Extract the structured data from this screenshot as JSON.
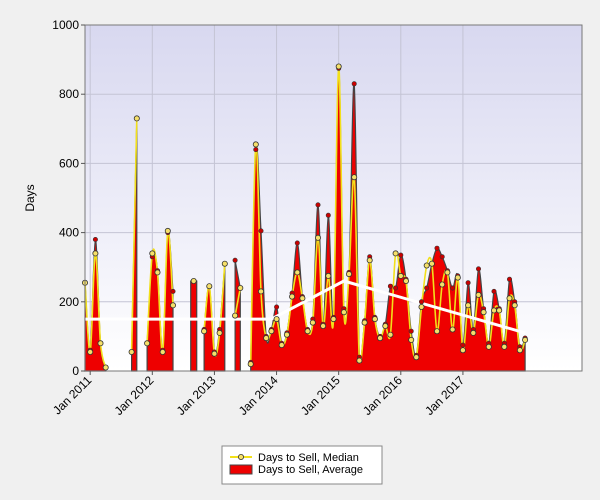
{
  "chart_data": {
    "type": "area",
    "title": "",
    "xlabel": "",
    "ylabel": "Days",
    "ylim": [
      0,
      1000
    ],
    "yticks": [
      "0",
      "200",
      "400",
      "600",
      "800",
      "1000"
    ],
    "xlim": [
      "2010-12",
      "2018-12"
    ],
    "xticks": [
      {
        "date": "2011-01",
        "label": "Jan 2011"
      },
      {
        "date": "2012-01",
        "label": "Jan 2012"
      },
      {
        "date": "2013-01",
        "label": "Jan 2013"
      },
      {
        "date": "2014-01",
        "label": "Jan 2014"
      },
      {
        "date": "2015-01",
        "label": "Jan 2015"
      },
      {
        "date": "2016-01",
        "label": "Jan 2016"
      },
      {
        "date": "2017-01",
        "label": "Jan 2017"
      }
    ],
    "grid": true,
    "legend_position": "bottom-center",
    "series": [
      {
        "name": "Days to Sell, Median",
        "kind": "line-markers",
        "color": "#f2e01a",
        "marker_color": "#f6e06a",
        "points": [
          [
            "2010-12",
            255
          ],
          [
            "2011-01",
            55
          ],
          [
            "2011-02",
            340
          ],
          [
            "2011-03",
            80
          ],
          [
            "2011-04",
            10
          ],
          [
            "2011-09",
            55
          ],
          [
            "2011-10",
            730
          ],
          [
            "2011-12",
            80
          ],
          [
            "2012-01",
            340
          ],
          [
            "2012-02",
            285
          ],
          [
            "2012-03",
            55
          ],
          [
            "2012-04",
            405
          ],
          [
            "2012-05",
            190
          ],
          [
            "2012-09",
            260
          ],
          [
            "2012-11",
            115
          ],
          [
            "2012-12",
            245
          ],
          [
            "2013-01",
            50
          ],
          [
            "2013-02",
            110
          ],
          [
            "2013-03",
            310
          ],
          [
            "2013-05",
            160
          ],
          [
            "2013-06",
            240
          ],
          [
            "2013-08",
            20
          ],
          [
            "2013-09",
            655
          ],
          [
            "2013-10",
            230
          ],
          [
            "2013-11",
            95
          ],
          [
            "2013-12",
            115
          ],
          [
            "2014-01",
            150
          ],
          [
            "2014-02",
            75
          ],
          [
            "2014-03",
            105
          ],
          [
            "2014-04",
            215
          ],
          [
            "2014-05",
            285
          ],
          [
            "2014-06",
            210
          ],
          [
            "2014-07",
            115
          ],
          [
            "2014-08",
            140
          ],
          [
            "2014-09",
            385
          ],
          [
            "2014-10",
            130
          ],
          [
            "2014-11",
            275
          ],
          [
            "2014-12",
            150
          ],
          [
            "2015-01",
            880
          ],
          [
            "2015-02",
            170
          ],
          [
            "2015-03",
            280
          ],
          [
            "2015-04",
            560
          ],
          [
            "2015-05",
            30
          ],
          [
            "2015-06",
            140
          ],
          [
            "2015-07",
            320
          ],
          [
            "2015-08",
            150
          ],
          [
            "2015-09",
            95
          ],
          [
            "2015-10",
            130
          ],
          [
            "2015-11",
            105
          ],
          [
            "2015-12",
            340
          ],
          [
            "2016-01",
            275
          ],
          [
            "2016-02",
            260
          ],
          [
            "2016-03",
            90
          ],
          [
            "2016-04",
            40
          ],
          [
            "2016-05",
            185
          ],
          [
            "2016-06",
            305
          ],
          [
            "2016-07",
            310
          ],
          [
            "2016-08",
            115
          ],
          [
            "2016-09",
            250
          ],
          [
            "2016-10",
            285
          ],
          [
            "2016-11",
            120
          ],
          [
            "2016-12",
            270
          ],
          [
            "2017-01",
            60
          ],
          [
            "2017-02",
            190
          ],
          [
            "2017-03",
            110
          ],
          [
            "2017-04",
            220
          ],
          [
            "2017-05",
            170
          ],
          [
            "2017-06",
            70
          ],
          [
            "2017-07",
            175
          ],
          [
            "2017-08",
            175
          ],
          [
            "2017-09",
            70
          ],
          [
            "2017-10",
            210
          ],
          [
            "2017-11",
            190
          ],
          [
            "2017-12",
            60
          ],
          [
            "2018-01",
            90
          ]
        ]
      },
      {
        "name": "Days to Sell, Average",
        "kind": "area",
        "fill": "#ee0000",
        "stroke": "#444444",
        "marker_color": "#cc0000",
        "points": [
          [
            "2010-12",
            255
          ],
          [
            "2011-01",
            60
          ],
          [
            "2011-02",
            380
          ],
          [
            "2011-03",
            80
          ],
          [
            "2011-04",
            10
          ],
          [
            "2011-09",
            55
          ],
          [
            "2011-10",
            730
          ],
          [
            "2011-12",
            80
          ],
          [
            "2012-01",
            330
          ],
          [
            "2012-02",
            290
          ],
          [
            "2012-03",
            60
          ],
          [
            "2012-04",
            400
          ],
          [
            "2012-05",
            230
          ],
          [
            "2012-09",
            260
          ],
          [
            "2012-11",
            120
          ],
          [
            "2012-12",
            245
          ],
          [
            "2013-01",
            55
          ],
          [
            "2013-02",
            120
          ],
          [
            "2013-03",
            310
          ],
          [
            "2013-05",
            320
          ],
          [
            "2013-06",
            240
          ],
          [
            "2013-08",
            25
          ],
          [
            "2013-09",
            640
          ],
          [
            "2013-10",
            405
          ],
          [
            "2013-11",
            100
          ],
          [
            "2013-12",
            120
          ],
          [
            "2014-01",
            185
          ],
          [
            "2014-02",
            80
          ],
          [
            "2014-03",
            110
          ],
          [
            "2014-04",
            225
          ],
          [
            "2014-05",
            370
          ],
          [
            "2014-06",
            215
          ],
          [
            "2014-07",
            120
          ],
          [
            "2014-08",
            150
          ],
          [
            "2014-09",
            480
          ],
          [
            "2014-10",
            135
          ],
          [
            "2014-11",
            450
          ],
          [
            "2014-12",
            155
          ],
          [
            "2015-01",
            875
          ],
          [
            "2015-02",
            180
          ],
          [
            "2015-03",
            285
          ],
          [
            "2015-04",
            830
          ],
          [
            "2015-05",
            40
          ],
          [
            "2015-06",
            145
          ],
          [
            "2015-07",
            330
          ],
          [
            "2015-08",
            155
          ],
          [
            "2015-09",
            100
          ],
          [
            "2015-10",
            135
          ],
          [
            "2015-11",
            245
          ],
          [
            "2015-12",
            240
          ],
          [
            "2016-01",
            335
          ],
          [
            "2016-02",
            265
          ],
          [
            "2016-03",
            115
          ],
          [
            "2016-04",
            45
          ],
          [
            "2016-05",
            200
          ],
          [
            "2016-06",
            240
          ],
          [
            "2016-07",
            310
          ],
          [
            "2016-08",
            355
          ],
          [
            "2016-09",
            330
          ],
          [
            "2016-10",
            290
          ],
          [
            "2016-11",
            240
          ],
          [
            "2016-12",
            275
          ],
          [
            "2017-01",
            75
          ],
          [
            "2017-02",
            255
          ],
          [
            "2017-03",
            120
          ],
          [
            "2017-04",
            295
          ],
          [
            "2017-05",
            180
          ],
          [
            "2017-06",
            80
          ],
          [
            "2017-07",
            230
          ],
          [
            "2017-08",
            180
          ],
          [
            "2017-09",
            80
          ],
          [
            "2017-10",
            265
          ],
          [
            "2017-11",
            200
          ],
          [
            "2017-12",
            70
          ],
          [
            "2018-01",
            95
          ]
        ]
      },
      {
        "name": "",
        "kind": "trend",
        "color": "#ffffff",
        "points": [
          [
            "2010-12",
            150
          ],
          [
            "2013-12",
            150
          ],
          [
            "2015-02",
            260
          ],
          [
            "2018-01",
            110
          ]
        ]
      }
    ]
  }
}
